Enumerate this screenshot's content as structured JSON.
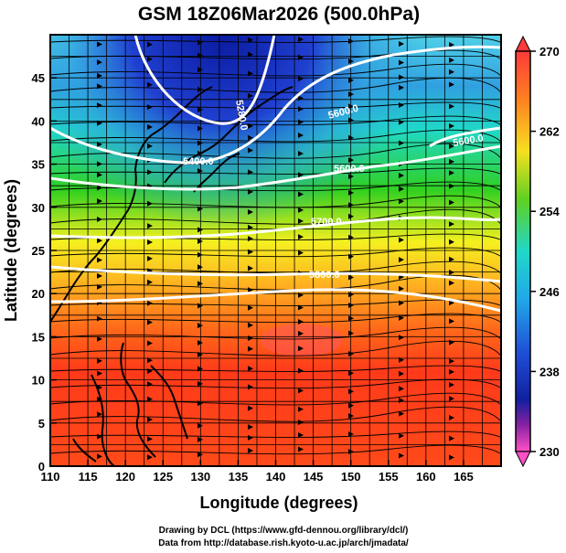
{
  "title": "GSM 18Z06Mar2026 (500.0hPa)",
  "xlabel": "Longitude (degrees)",
  "ylabel": "Latitude  (degrees)",
  "x_ticks": [
    "110",
    "115",
    "120",
    "125",
    "130",
    "135",
    "140",
    "145",
    "150",
    "155",
    "160",
    "165"
  ],
  "y_ticks": [
    "0",
    "5",
    "10",
    "15",
    "20",
    "25",
    "30",
    "35",
    "40",
    "45"
  ],
  "colorbar_ticks": [
    "270",
    "262",
    "254",
    "246",
    "238",
    "230"
  ],
  "contour_labels": [
    "5280.0",
    "5400.0",
    "5600.0",
    "5600.0",
    "5700.0",
    "5800.0",
    "5600.0"
  ],
  "credits": {
    "line1": "Drawing by DCL (https://www.gfd-dennou.org/library/dcl/)",
    "line2": "Data from http://database.rish.kyoto-u.ac.jp/arch/jmadata/"
  },
  "colors": {
    "red": "#ff3a1a",
    "orange": "#ff8c1a",
    "yellow": "#f5f020",
    "green": "#30d020",
    "cyan": "#20d8d8",
    "blue": "#2040d0",
    "navy": "#0a1aa0",
    "magenta": "#ff50c8",
    "contour": "#ffffff",
    "streamline": "#000000"
  },
  "chart_data": {
    "type": "heatmap",
    "title": "GSM 18Z06Mar2026 (500.0hPa)",
    "xlabel": "Longitude (degrees)",
    "ylabel": "Latitude  (degrees)",
    "xlim": [
      110,
      170
    ],
    "ylim": [
      0,
      50
    ],
    "colorbar": {
      "min": 230,
      "max": 270,
      "ticks": [
        270,
        262,
        254,
        246,
        238,
        230
      ]
    },
    "contours": [
      {
        "value": 5280,
        "label": "5280.0"
      },
      {
        "value": 5400,
        "label": "5400.0"
      },
      {
        "value": 5600,
        "label": "5600.0"
      },
      {
        "value": 5700,
        "label": "5700.0"
      },
      {
        "value": 5800,
        "label": "5800.0"
      }
    ],
    "overlays": [
      "temperature shading",
      "geopotential height contours",
      "wind streamlines",
      "coastlines"
    ]
  }
}
